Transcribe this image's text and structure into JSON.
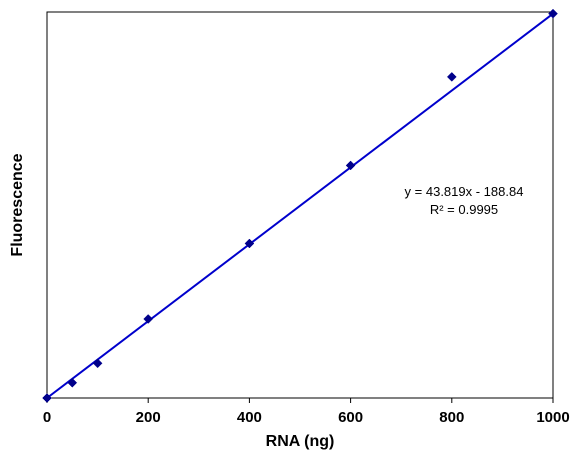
{
  "chart_data": {
    "type": "scatter",
    "title": "",
    "xlabel": "RNA (ng)",
    "ylabel": "Fluorescence",
    "xlim": [
      0,
      1000
    ],
    "ylim": [
      0,
      43819
    ],
    "x_ticks": [
      "0",
      "200",
      "400",
      "600",
      "800",
      "1000"
    ],
    "y_ticks_shown": false,
    "grid": false,
    "legend": "none",
    "colors": {
      "marker": "#00008B",
      "trendline": "#0000CC",
      "axes": "#000000"
    },
    "series": [
      {
        "x": [
          0,
          50,
          100,
          200,
          400,
          600,
          800,
          1000
        ],
        "y": [
          0,
          1730,
          3940,
          8970,
          17540,
          26400,
          36450,
          43630
        ]
      }
    ],
    "trendline": {
      "slope": 43.819,
      "intercept": -188.84,
      "equation": "y = 43.819x - 188.84",
      "r_squared": "R² = 0.9995"
    }
  }
}
